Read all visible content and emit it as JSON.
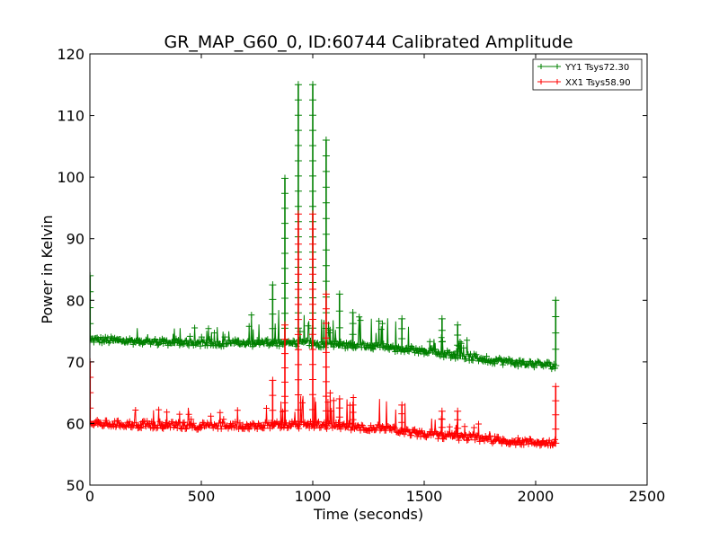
{
  "chart_data": {
    "type": "line",
    "title": "GR_MAP_G60_0, ID:60744 Calibrated Amplitude",
    "xlabel": "Time (seconds)",
    "ylabel": "Power in Kelvin",
    "xlim": [
      0,
      2500
    ],
    "ylim": [
      50,
      120
    ],
    "xticks": [
      "0",
      "500",
      "1000",
      "1500",
      "2000",
      "2500"
    ],
    "yticks": [
      "50",
      "60",
      "70",
      "80",
      "90",
      "100",
      "110",
      "120"
    ],
    "grid": false,
    "legend_position": "top-right",
    "series": [
      {
        "name": "YY1 Tsys72.30",
        "color": "#008000",
        "marker": "+",
        "baseline": [
          [
            0,
            73.6
          ],
          [
            500,
            73.1
          ],
          [
            1000,
            73.0
          ],
          [
            1300,
            72.5
          ],
          [
            1500,
            71.8
          ],
          [
            1700,
            70.8
          ],
          [
            1900,
            69.9
          ],
          [
            2090,
            69.4
          ]
        ],
        "peaks": [
          [
            0,
            84.0
          ],
          [
            820,
            82.5
          ],
          [
            875,
            99.8
          ],
          [
            935,
            115.0
          ],
          [
            1000,
            115.0
          ],
          [
            1060,
            106.0
          ],
          [
            1120,
            81.0
          ],
          [
            1180,
            78.0
          ],
          [
            1400,
            77.0
          ],
          [
            1580,
            77.0
          ],
          [
            1650,
            76.0
          ],
          [
            2090,
            80.0
          ]
        ]
      },
      {
        "name": "XX1 Tsys58.90",
        "color": "#ff0000",
        "marker": "+",
        "baseline": [
          [
            0,
            60.0
          ],
          [
            500,
            59.6
          ],
          [
            1000,
            59.8
          ],
          [
            1300,
            59.2
          ],
          [
            1500,
            58.3
          ],
          [
            1700,
            57.7
          ],
          [
            1900,
            57.1
          ],
          [
            2090,
            56.8
          ]
        ],
        "peaks": [
          [
            0,
            70.0
          ],
          [
            820,
            67.0
          ],
          [
            875,
            76.0
          ],
          [
            935,
            94.0
          ],
          [
            1000,
            94.0
          ],
          [
            1060,
            81.0
          ],
          [
            1120,
            64.0
          ],
          [
            1180,
            63.0
          ],
          [
            1400,
            63.0
          ],
          [
            1580,
            62.0
          ],
          [
            1650,
            62.0
          ],
          [
            2090,
            66.0
          ]
        ]
      }
    ]
  }
}
